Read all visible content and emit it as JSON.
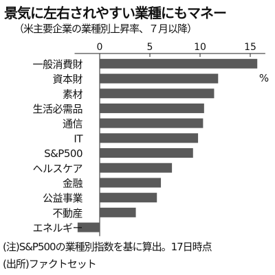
{
  "title": "景気に左右されやすい業種にもマネー",
  "subtitle": "（米主要企業の業種別上昇率、７月以降）",
  "note": "(注)S&P500の業種別指数を基に算出。17日時点",
  "source": "(出所)ファクトセット",
  "colors": {
    "bar": "#5a5a5a",
    "axis": "#222222",
    "grid": "#888888"
  },
  "chart_data": {
    "type": "bar",
    "orientation": "horizontal",
    "unit_label": "%",
    "categories": [
      "一般消費財",
      "資本財",
      "素材",
      "生活必需品",
      "通信",
      "IT",
      "S&P500",
      "ヘルスケア",
      "金融",
      "公益事業",
      "不動産",
      "エネルギー"
    ],
    "values": [
      15.7,
      11.8,
      11.4,
      10.4,
      10.3,
      9.8,
      9.3,
      7.2,
      6.1,
      5.7,
      3.6,
      -2.2
    ],
    "xticks": [
      0,
      5,
      10,
      15
    ],
    "xlim": [
      -2.5,
      16.5
    ],
    "grid": false,
    "legend": "none"
  }
}
